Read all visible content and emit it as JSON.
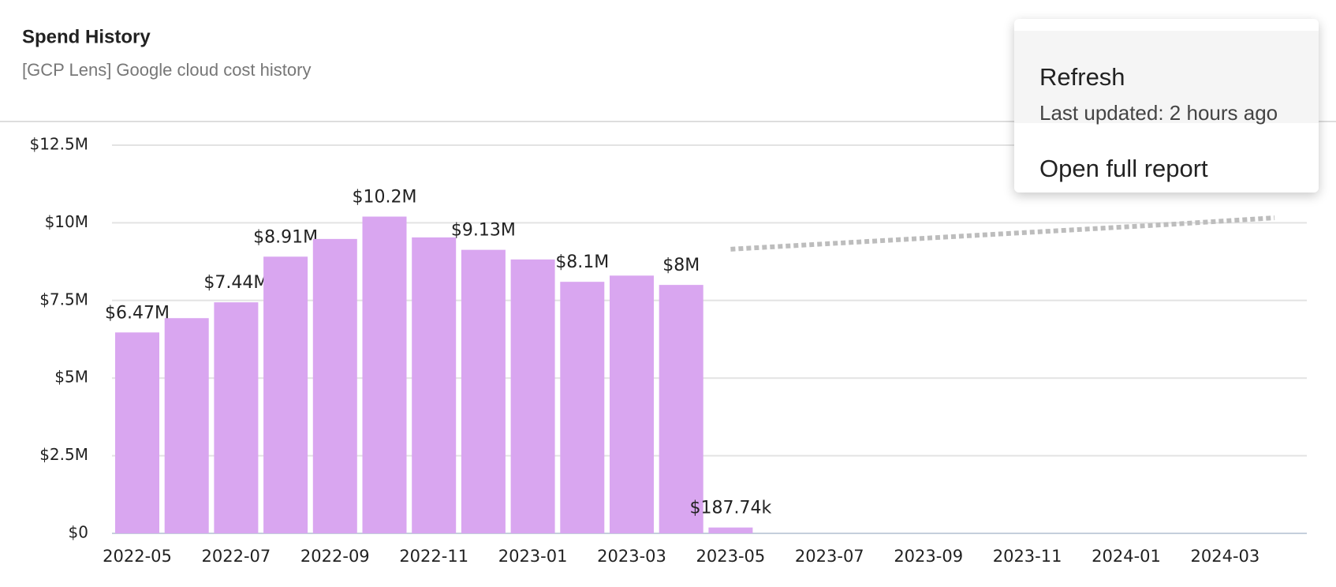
{
  "header": {
    "title": "Spend History",
    "subtitle": "[GCP Lens] Google cloud cost history"
  },
  "menu": {
    "items": [
      {
        "label": "Refresh",
        "detail": "Last updated: 2 hours ago"
      },
      {
        "label": "Open full report"
      }
    ]
  },
  "chart_data": {
    "type": "bar",
    "categories": [
      "2022-05",
      null,
      "2022-07",
      null,
      "2022-09",
      null,
      "2022-11",
      null,
      "2023-01",
      null,
      "2023-03",
      null,
      "2023-05",
      null,
      "2023-07",
      null,
      "2023-09",
      null,
      "2023-11",
      null,
      "2024-01",
      null,
      "2024-03",
      null
    ],
    "series": [
      {
        "type": "bar",
        "color": "#d9a6f0",
        "values": [
          6470000,
          6930000,
          7440000,
          8910000,
          9480000,
          10200000,
          9530000,
          9130000,
          8820000,
          8100000,
          8300000,
          8000000,
          187740,
          null,
          null,
          null,
          null,
          null,
          null,
          null,
          null,
          null,
          null,
          null
        ],
        "value_labels": [
          "$6.47M",
          null,
          "$7.44M",
          "$8.91M",
          null,
          "$10.2M",
          null,
          "$9.13M",
          null,
          "$8.1M",
          null,
          "$8M",
          "$187.74k",
          null,
          null,
          null,
          null,
          null,
          null,
          null,
          null,
          null,
          null,
          null
        ]
      },
      {
        "type": "line",
        "style": "dotted",
        "color": "#bdbdbd",
        "values": [
          null,
          null,
          null,
          null,
          null,
          null,
          null,
          null,
          null,
          null,
          null,
          null,
          9150000,
          9240000,
          9330000,
          9420000,
          9510000,
          9600000,
          9690000,
          9780000,
          9870000,
          9960000,
          10060000,
          10160000
        ]
      }
    ],
    "ylim": [
      0,
      12500000
    ],
    "yticks": [
      {
        "value": 0,
        "label": "$0"
      },
      {
        "value": 2500000,
        "label": "$2.5M"
      },
      {
        "value": 5000000,
        "label": "$5M"
      },
      {
        "value": 7500000,
        "label": "$7.5M"
      },
      {
        "value": 10000000,
        "label": "$10M"
      },
      {
        "value": 12500000,
        "label": "$12.5M"
      }
    ],
    "grid": true
  }
}
